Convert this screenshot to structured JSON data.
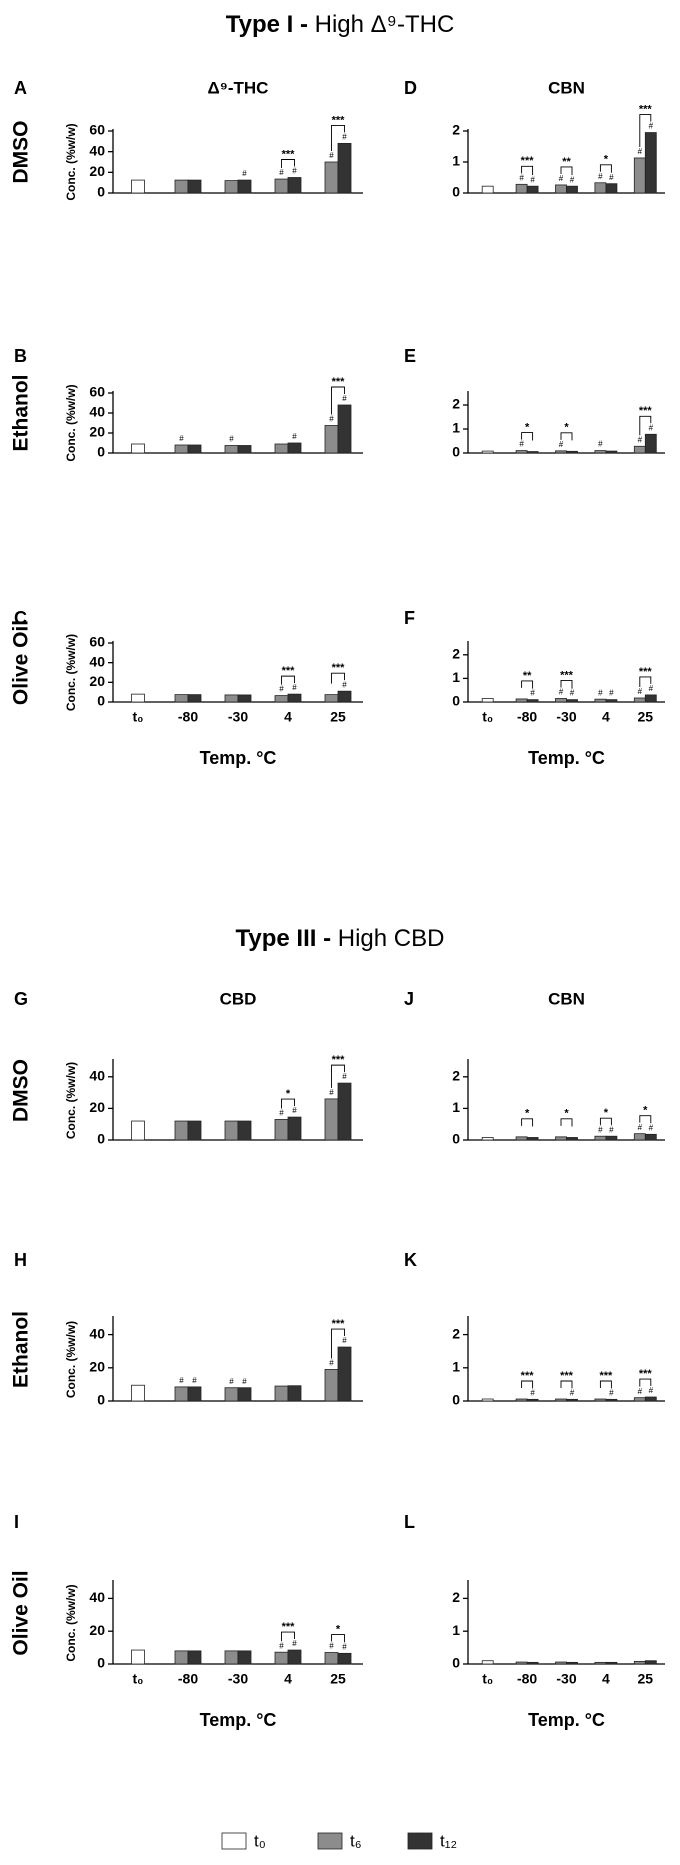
{
  "figure": {
    "sections": [
      {
        "bold": "Type I -",
        "rest": "High Δ⁹-THC"
      },
      {
        "bold": "Type III -",
        "rest": "High CBD"
      }
    ]
  },
  "chart_data": [
    {
      "type": "bar",
      "letter": "A",
      "title": "Δ⁹-THC",
      "row_label": "DMSO",
      "ylabel": "Conc. (%w/w)",
      "ylim": [
        0,
        60
      ],
      "yticks": [
        0,
        20,
        40,
        60
      ],
      "series": [
        {
          "name": "t₀",
          "color": "#ffffff",
          "values": [
            12.5,
            null,
            null,
            null,
            null
          ],
          "annotations": [
            null,
            null,
            null,
            null,
            null
          ]
        },
        {
          "name": "t₆",
          "color": "#8c8c8c",
          "values": [
            null,
            12.5,
            12,
            13.5,
            30
          ],
          "annotations": [
            null,
            null,
            null,
            "#",
            "#"
          ]
        },
        {
          "name": "t₁₂",
          "color": "#333333",
          "values": [
            null,
            12.5,
            12.5,
            15,
            48
          ],
          "annotations": [
            null,
            null,
            "#",
            "#",
            "#"
          ]
        }
      ],
      "significance": [
        null,
        null,
        null,
        "***",
        "***"
      ]
    },
    {
      "type": "bar",
      "letter": "D",
      "title": "CBN",
      "ylim": [
        0,
        2
      ],
      "yticks": [
        0,
        1,
        2
      ],
      "series": [
        {
          "name": "t₀",
          "color": "#ffffff",
          "values": [
            0.22,
            null,
            null,
            null,
            null
          ],
          "annotations": [
            null,
            null,
            null,
            null,
            null
          ]
        },
        {
          "name": "t₆",
          "color": "#8c8c8c",
          "values": [
            null,
            0.28,
            0.26,
            0.33,
            1.13
          ],
          "annotations": [
            null,
            "#",
            "#",
            "#",
            "#"
          ]
        },
        {
          "name": "t₁₂",
          "color": "#333333",
          "values": [
            null,
            0.22,
            0.22,
            0.3,
            1.95
          ],
          "annotations": [
            null,
            "#",
            "#",
            "#",
            "#"
          ]
        }
      ],
      "significance": [
        null,
        "***",
        "**",
        "*",
        "***"
      ]
    },
    {
      "type": "bar",
      "letter": "B",
      "row_label": "Ethanol",
      "ylabel": "Conc. (%w/w)",
      "ylim": [
        0,
        60
      ],
      "yticks": [
        0,
        20,
        40,
        60
      ],
      "series": [
        {
          "name": "t₀",
          "color": "#ffffff",
          "values": [
            9,
            null,
            null,
            null,
            null
          ],
          "annotations": [
            null,
            null,
            null,
            null,
            null
          ]
        },
        {
          "name": "t₆",
          "color": "#8c8c8c",
          "values": [
            null,
            8,
            7.5,
            9,
            27.5
          ],
          "annotations": [
            null,
            "#",
            "#",
            null,
            "#"
          ]
        },
        {
          "name": "t₁₂",
          "color": "#333333",
          "values": [
            null,
            8,
            7.5,
            10,
            48
          ],
          "annotations": [
            null,
            null,
            null,
            "#",
            "#"
          ]
        }
      ],
      "significance": [
        null,
        null,
        null,
        null,
        "***"
      ]
    },
    {
      "type": "bar",
      "letter": "E",
      "ylim": [
        0,
        2.5
      ],
      "yticks": [
        0,
        1,
        2
      ],
      "series": [
        {
          "name": "t₀",
          "color": "#ffffff",
          "values": [
            0.08,
            null,
            null,
            null,
            null
          ],
          "annotations": [
            null,
            null,
            null,
            null,
            null
          ]
        },
        {
          "name": "t₆",
          "color": "#8c8c8c",
          "values": [
            null,
            0.1,
            0.09,
            0.1,
            0.28
          ],
          "annotations": [
            null,
            "#",
            "#",
            "#",
            "#"
          ]
        },
        {
          "name": "t₁₂",
          "color": "#333333",
          "values": [
            null,
            0.06,
            0.07,
            0.08,
            0.78
          ],
          "annotations": [
            null,
            null,
            null,
            null,
            "#"
          ]
        }
      ],
      "significance": [
        null,
        "*",
        "*",
        null,
        "***"
      ]
    },
    {
      "type": "bar",
      "letter": "C",
      "row_label": "Olive Oil",
      "ylabel": "Conc. (%w/w)",
      "xlabel": "Temp. °C",
      "categories": [
        "t₀",
        "-80",
        "-30",
        "4",
        "25"
      ],
      "ylim": [
        0,
        60
      ],
      "yticks": [
        0,
        20,
        40,
        60
      ],
      "series": [
        {
          "name": "t₀",
          "color": "#ffffff",
          "values": [
            8,
            null,
            null,
            null,
            null
          ],
          "annotations": [
            null,
            null,
            null,
            null,
            null
          ]
        },
        {
          "name": "t₆",
          "color": "#8c8c8c",
          "values": [
            null,
            7.5,
            7.2,
            6.5,
            7.5
          ],
          "annotations": [
            null,
            null,
            null,
            "#",
            null
          ]
        },
        {
          "name": "t₁₂",
          "color": "#333333",
          "values": [
            null,
            7.5,
            7.2,
            8,
            11
          ],
          "annotations": [
            null,
            null,
            null,
            "#",
            "#"
          ]
        }
      ],
      "significance": [
        null,
        null,
        null,
        "***",
        "***"
      ]
    },
    {
      "type": "bar",
      "letter": "F",
      "xlabel": "Temp. °C",
      "categories": [
        "t₀",
        "-80",
        "-30",
        "4",
        "25"
      ],
      "ylim": [
        0,
        2.5
      ],
      "yticks": [
        0,
        1,
        2
      ],
      "series": [
        {
          "name": "t₀",
          "color": "#ffffff",
          "values": [
            0.15,
            null,
            null,
            null,
            null
          ],
          "annotations": [
            null,
            null,
            null,
            null,
            null
          ]
        },
        {
          "name": "t₆",
          "color": "#8c8c8c",
          "values": [
            null,
            0.13,
            0.15,
            0.12,
            0.17
          ],
          "annotations": [
            null,
            null,
            "#",
            "#",
            "#"
          ]
        },
        {
          "name": "t₁₂",
          "color": "#333333",
          "values": [
            null,
            0.1,
            0.1,
            0.1,
            0.3
          ],
          "annotations": [
            null,
            "#",
            "#",
            "#",
            "#"
          ]
        }
      ],
      "significance": [
        null,
        "**",
        "***",
        null,
        "***"
      ]
    },
    {
      "type": "bar",
      "letter": "G",
      "title": "CBD",
      "row_label": "DMSO",
      "ylabel": "Conc. (%w/w)",
      "ylim": [
        0,
        50
      ],
      "yticks": [
        0,
        20,
        40
      ],
      "series": [
        {
          "name": "t₀",
          "color": "#ffffff",
          "values": [
            12,
            null,
            null,
            null,
            null
          ],
          "annotations": [
            null,
            null,
            null,
            null,
            null
          ]
        },
        {
          "name": "t₆",
          "color": "#8c8c8c",
          "values": [
            null,
            12,
            12,
            13,
            26
          ],
          "annotations": [
            null,
            null,
            null,
            "#",
            "#"
          ]
        },
        {
          "name": "t₁₂",
          "color": "#333333",
          "values": [
            null,
            12,
            12,
            14.5,
            36
          ],
          "annotations": [
            null,
            null,
            null,
            "#",
            "#"
          ]
        }
      ],
      "significance": [
        null,
        null,
        null,
        "*",
        "***"
      ]
    },
    {
      "type": "bar",
      "letter": "J",
      "title": "CBN",
      "ylim": [
        0,
        2.5
      ],
      "yticks": [
        0,
        1,
        2
      ],
      "series": [
        {
          "name": "t₀",
          "color": "#ffffff",
          "values": [
            0.08,
            null,
            null,
            null,
            null
          ],
          "annotations": [
            null,
            null,
            null,
            null,
            null
          ]
        },
        {
          "name": "t₆",
          "color": "#8c8c8c",
          "values": [
            null,
            0.1,
            0.1,
            0.12,
            0.2
          ],
          "annotations": [
            null,
            null,
            null,
            "#",
            "#"
          ]
        },
        {
          "name": "t₁₂",
          "color": "#333333",
          "values": [
            null,
            0.08,
            0.08,
            0.12,
            0.18
          ],
          "annotations": [
            null,
            null,
            null,
            "#",
            "#"
          ]
        }
      ],
      "significance": [
        null,
        "*",
        "*",
        "*",
        "*"
      ]
    },
    {
      "type": "bar",
      "letter": "H",
      "row_label": "Ethanol",
      "ylabel": "Conc. (%w/w)",
      "ylim": [
        0,
        50
      ],
      "yticks": [
        0,
        20,
        40
      ],
      "series": [
        {
          "name": "t₀",
          "color": "#ffffff",
          "values": [
            9.5,
            null,
            null,
            null,
            null
          ],
          "annotations": [
            null,
            null,
            null,
            null,
            null
          ]
        },
        {
          "name": "t₆",
          "color": "#8c8c8c",
          "values": [
            null,
            8.5,
            8,
            9,
            19
          ],
          "annotations": [
            null,
            "#",
            "#",
            null,
            "#"
          ]
        },
        {
          "name": "t₁₂",
          "color": "#333333",
          "values": [
            null,
            8.5,
            8,
            9.2,
            32.5
          ],
          "annotations": [
            null,
            "#",
            "#",
            null,
            "#"
          ]
        }
      ],
      "significance": [
        null,
        null,
        null,
        null,
        "***"
      ]
    },
    {
      "type": "bar",
      "letter": "K",
      "ylim": [
        0,
        2.5
      ],
      "yticks": [
        0,
        1,
        2
      ],
      "series": [
        {
          "name": "t₀",
          "color": "#ffffff",
          "values": [
            0.06,
            null,
            null,
            null,
            null
          ],
          "annotations": [
            null,
            null,
            null,
            null,
            null
          ]
        },
        {
          "name": "t₆",
          "color": "#8c8c8c",
          "values": [
            null,
            0.06,
            0.06,
            0.06,
            0.1
          ],
          "annotations": [
            null,
            null,
            null,
            null,
            "#"
          ]
        },
        {
          "name": "t₁₂",
          "color": "#333333",
          "values": [
            null,
            0.05,
            0.05,
            0.05,
            0.12
          ],
          "annotations": [
            null,
            "#",
            "#",
            "#",
            "#"
          ]
        }
      ],
      "significance": [
        null,
        "***",
        "***",
        "***",
        "***"
      ]
    },
    {
      "type": "bar",
      "letter": "I",
      "row_label": "Olive Oil",
      "ylabel": "Conc. (%w/w)",
      "xlabel": "Temp. °C",
      "categories": [
        "t₀",
        "-80",
        "-30",
        "4",
        "25"
      ],
      "ylim": [
        0,
        50
      ],
      "yticks": [
        0,
        20,
        40
      ],
      "series": [
        {
          "name": "t₀",
          "color": "#ffffff",
          "values": [
            8.5,
            null,
            null,
            null,
            null
          ],
          "annotations": [
            null,
            null,
            null,
            null,
            null
          ]
        },
        {
          "name": "t₆",
          "color": "#8c8c8c",
          "values": [
            null,
            8,
            8,
            7.2,
            7
          ],
          "annotations": [
            null,
            null,
            null,
            "#",
            "#"
          ]
        },
        {
          "name": "t₁₂",
          "color": "#333333",
          "values": [
            null,
            8,
            8,
            8.5,
            6.5
          ],
          "annotations": [
            null,
            null,
            null,
            "#",
            "#"
          ]
        }
      ],
      "significance": [
        null,
        null,
        null,
        "***",
        "*"
      ]
    },
    {
      "type": "bar",
      "letter": "L",
      "xlabel": "Temp. °C",
      "categories": [
        "t₀",
        "-80",
        "-30",
        "4",
        "25"
      ],
      "ylim": [
        0,
        2.5
      ],
      "yticks": [
        0,
        1,
        2
      ],
      "series": [
        {
          "name": "t₀",
          "color": "#ffffff",
          "values": [
            0.1,
            null,
            null,
            null,
            null
          ],
          "annotations": [
            null,
            null,
            null,
            null,
            null
          ]
        },
        {
          "name": "t₆",
          "color": "#8c8c8c",
          "values": [
            null,
            0.06,
            0.06,
            0.05,
            0.08
          ],
          "annotations": [
            null,
            null,
            null,
            null,
            null
          ]
        },
        {
          "name": "t₁₂",
          "color": "#333333",
          "values": [
            null,
            0.05,
            0.05,
            0.05,
            0.1
          ],
          "annotations": [
            null,
            null,
            null,
            null,
            null
          ]
        }
      ],
      "significance": [
        null,
        null,
        null,
        null,
        null
      ]
    }
  ]
}
